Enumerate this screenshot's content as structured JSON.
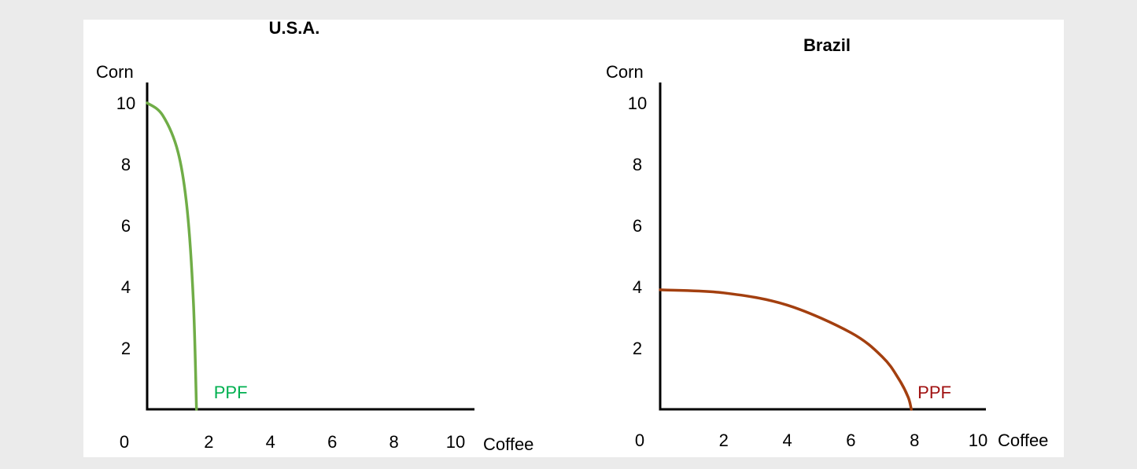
{
  "chart_data": [
    {
      "type": "line",
      "title": "U.S.A.",
      "xlabel": "Coffee",
      "ylabel": "Corn",
      "xlim": [
        0,
        11
      ],
      "ylim": [
        0,
        11
      ],
      "xticks": [
        0,
        2,
        4,
        6,
        8,
        10
      ],
      "yticks": [
        2,
        4,
        6,
        8,
        10
      ],
      "grid": false,
      "series": [
        {
          "name": "PPF",
          "color": "#70ad47",
          "label_color": "#00b050",
          "x": [
            0,
            0.5,
            1.0,
            1.3,
            1.5,
            1.6
          ],
          "y": [
            10,
            9.6,
            8.4,
            6.5,
            3.5,
            0
          ]
        }
      ]
    },
    {
      "type": "line",
      "title": "Brazil",
      "xlabel": "Coffee",
      "ylabel": "Corn",
      "xlim": [
        0,
        11
      ],
      "ylim": [
        0,
        11
      ],
      "xticks": [
        0,
        2,
        4,
        6,
        8,
        10
      ],
      "yticks": [
        2,
        4,
        6,
        8,
        10
      ],
      "grid": false,
      "series": [
        {
          "name": "PPF",
          "color": "#a33f0f",
          "label_color": "#a01010",
          "x": [
            0,
            2,
            4,
            6,
            7,
            7.5,
            7.8,
            7.9
          ],
          "y": [
            3.9,
            3.8,
            3.4,
            2.5,
            1.7,
            1.0,
            0.4,
            0
          ]
        }
      ]
    }
  ]
}
